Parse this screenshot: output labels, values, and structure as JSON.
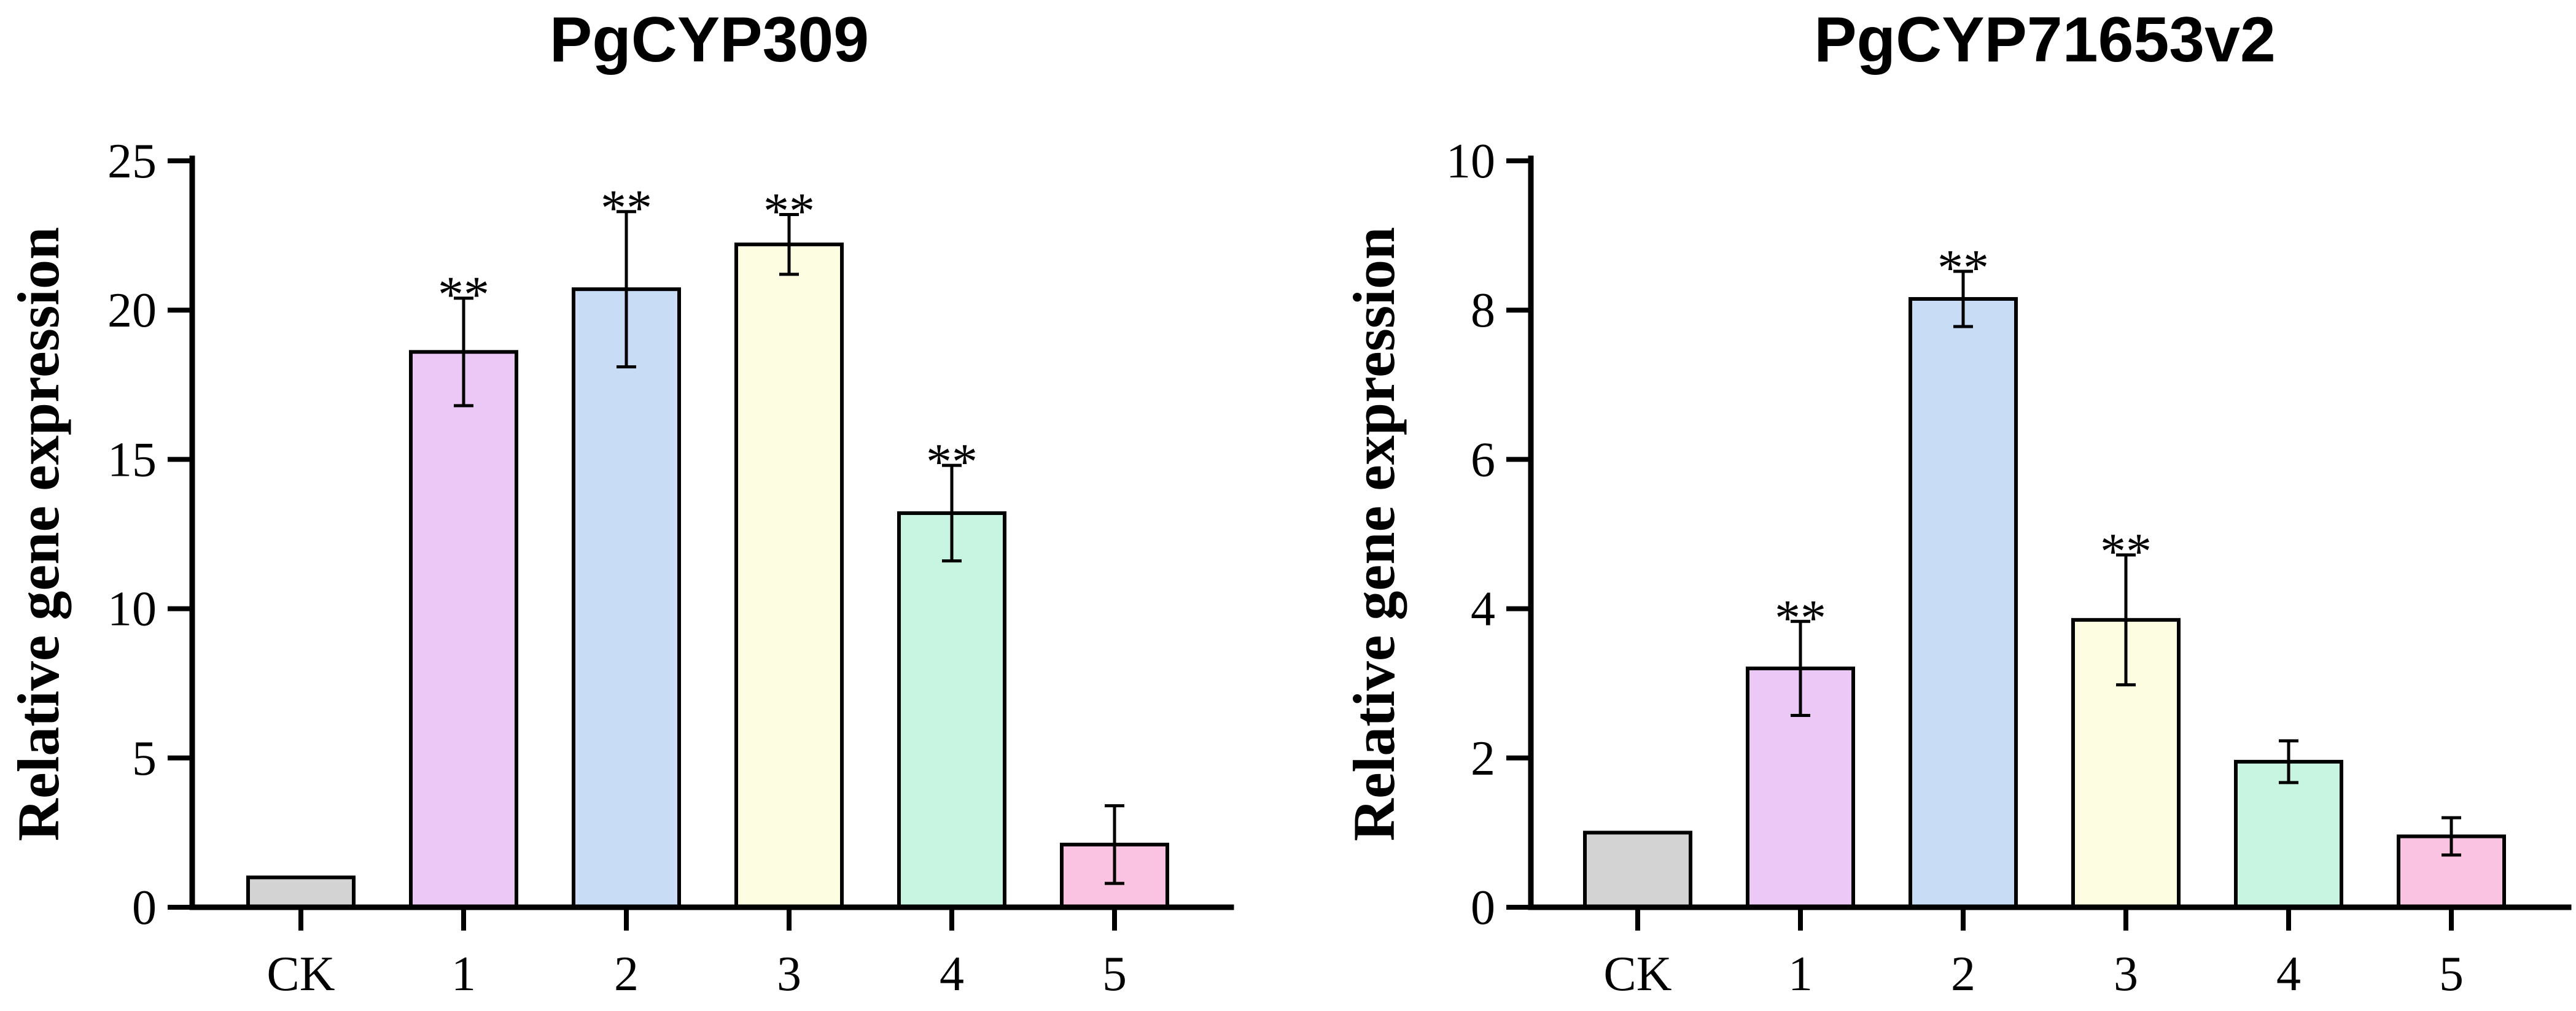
{
  "chart_data": [
    {
      "type": "bar",
      "title": "PgCYP309",
      "xlabel": "",
      "ylabel": "Relative gene expression",
      "categories": [
        "CK",
        "1",
        "2",
        "3",
        "4",
        "5"
      ],
      "values": [
        1.0,
        18.6,
        20.7,
        22.2,
        13.2,
        2.1
      ],
      "errors": [
        0,
        1.8,
        2.6,
        1.0,
        1.6,
        1.3
      ],
      "significance": [
        "",
        "**",
        "**",
        "**",
        "**",
        ""
      ],
      "ylim": [
        0,
        25
      ],
      "yticks": [
        0,
        5,
        10,
        15,
        20,
        25
      ],
      "ytick_labels": [
        "0",
        "5",
        "10",
        "15",
        "20",
        "25"
      ],
      "bar_colors": [
        "#d3d3d3",
        "#ebc8f5",
        "#c8dcf5",
        "#fdfde1",
        "#c8f5e1",
        "#f9c3e1"
      ]
    },
    {
      "type": "bar",
      "title": "PgCYP71653v2",
      "xlabel": "",
      "ylabel": "Relative gene expression",
      "categories": [
        "CK",
        "1",
        "2",
        "3",
        "4",
        "5"
      ],
      "values": [
        1.0,
        3.2,
        8.15,
        3.85,
        1.95,
        0.95
      ],
      "errors": [
        0,
        0.63,
        0.37,
        0.87,
        0.28,
        0.25
      ],
      "significance": [
        "",
        "**",
        "**",
        "**",
        "",
        ""
      ],
      "ylim": [
        0,
        10
      ],
      "yticks": [
        0,
        2,
        4,
        6,
        8,
        10
      ],
      "ytick_labels": [
        "0",
        "2",
        "4",
        "6",
        "8",
        "10"
      ],
      "bar_colors": [
        "#d3d3d3",
        "#ebc8f5",
        "#c8dcf5",
        "#fdfde1",
        "#c8f5e1",
        "#f9c3e1"
      ]
    }
  ]
}
